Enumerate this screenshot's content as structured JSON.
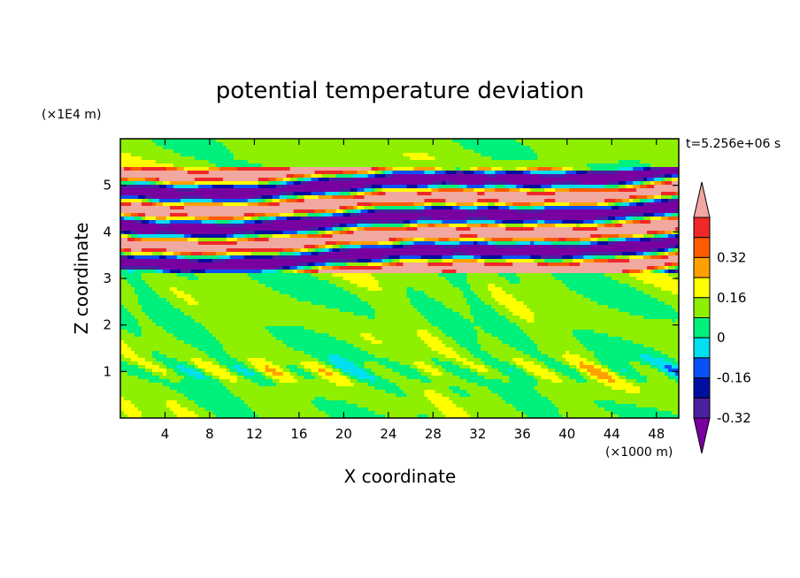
{
  "chart_data": {
    "type": "heatmap",
    "title": "potential temperature deviation",
    "time_label": "t=5.256e+06 s",
    "x_label": "X coordinate",
    "x_unit": "(×1000 m)",
    "x_range": [
      0,
      50
    ],
    "x_ticks": [
      4,
      8,
      12,
      16,
      20,
      24,
      28,
      32,
      36,
      40,
      44,
      48
    ],
    "y_label": "Z coordinate",
    "y_unit": "(×1E4 m)",
    "y_range": [
      0,
      6
    ],
    "y_ticks": [
      1,
      2,
      3,
      4,
      5
    ],
    "colorbar": {
      "levels": [
        {
          "color": "#7800a0"
        },
        {
          "color": "#4a1fa0"
        },
        {
          "color": "#000ea0"
        },
        {
          "color": "#0a50f5"
        },
        {
          "color": "#00e0f0"
        },
        {
          "color": "#00f07c"
        },
        {
          "color": "#8ef000"
        },
        {
          "color": "#ffff00"
        },
        {
          "color": "#ffa000"
        },
        {
          "color": "#ff5a00"
        },
        {
          "color": "#f02828"
        },
        {
          "color": "#f0a8a0"
        }
      ],
      "labels": [
        {
          "text": "0.32",
          "value": 0.32
        },
        {
          "text": "0.16",
          "value": 0.16
        },
        {
          "text": "0",
          "value": 0
        },
        {
          "text": "-0.16",
          "value": -0.16
        },
        {
          "text": "-0.32",
          "value": -0.32
        }
      ]
    },
    "field_summary": {
      "lower_region": {
        "z_range": [
          0,
          3.1
        ],
        "dominant_colors": [
          "#8ef000",
          "#00f07c"
        ]
      },
      "layered_region": {
        "z_range": [
          3.1,
          5.4
        ],
        "dominant_colors": [
          "#f0a8a0",
          "#4a1fa0",
          "#000ea0",
          "#f02828",
          "#ffa000",
          "#00f07c"
        ]
      },
      "upper_region": {
        "z_range": [
          5.4,
          6.0
        ],
        "dominant_colors": [
          "#00f07c",
          "#8ef000"
        ]
      }
    }
  }
}
